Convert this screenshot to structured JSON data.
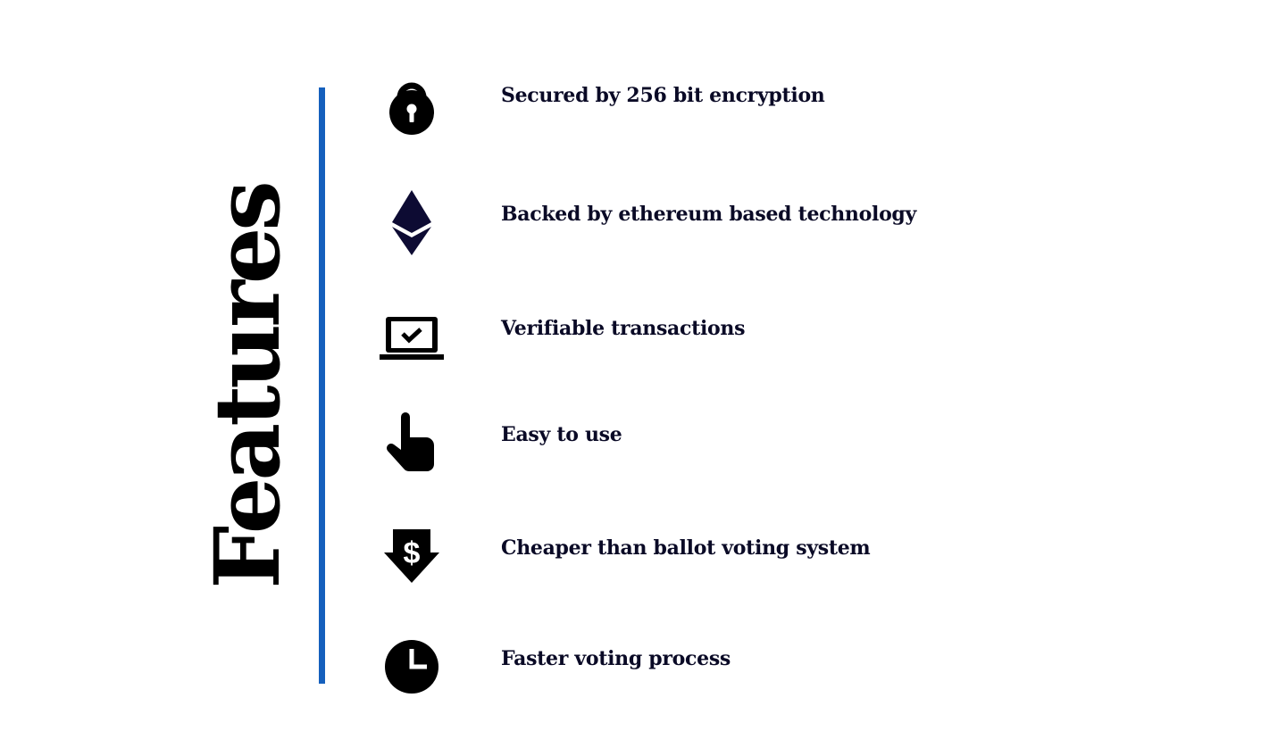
{
  "section": {
    "heading": "Features",
    "accent_color": "#1560bd"
  },
  "features": [
    {
      "icon": "lock-icon",
      "label": "Secured by 256 bit encryption"
    },
    {
      "icon": "ethereum-icon",
      "label": "Backed by ethereum based technology"
    },
    {
      "icon": "laptop-check-icon",
      "label": "Verifiable transactions"
    },
    {
      "icon": "pointing-hand-icon",
      "label": "Easy to use"
    },
    {
      "icon": "dollar-down-arrow-icon",
      "label": "Cheaper than ballot voting system"
    },
    {
      "icon": "clock-icon",
      "label": "Faster voting process"
    }
  ]
}
